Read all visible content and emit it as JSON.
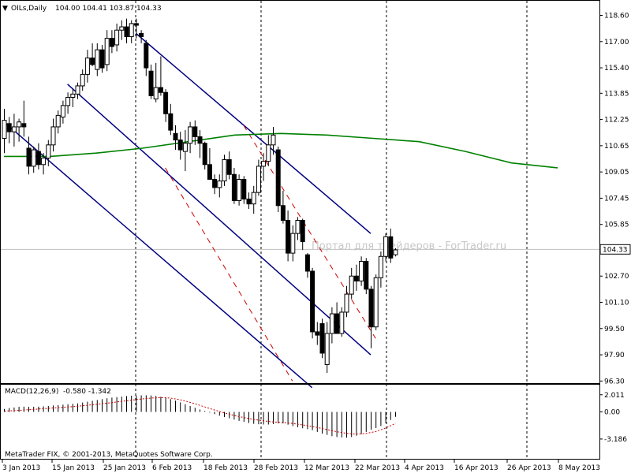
{
  "window": {
    "symbol_label": "OILs,Daily",
    "ohlc_label": "104.00 104.41 103.87 104.33",
    "menu_glyph": "▼",
    "watermark": "Портал для трейдеров - ForTrader.ru",
    "copyright": "MetaTrader FIX, © 2001-2013, MetaQuotes Software Corp."
  },
  "colors": {
    "background": "#ffffff",
    "frame": "#000000",
    "candle": "#000000",
    "channel": "#000080",
    "dashed_channel": "#cc0000",
    "moving_average": "#008000",
    "macd_histogram": "#000000",
    "macd_signal": "#cc0000",
    "grid": "#000000",
    "price_line": "#c0c0c0",
    "price_tag_bg": "#ffffff"
  },
  "chart_data": [
    {
      "type": "candlestick",
      "title": "OILs,Daily",
      "ylim": [
        96.3,
        118.6
      ],
      "y_ticks": [
        "118.60",
        "117.00",
        "115.40",
        "113.85",
        "112.25",
        "110.65",
        "109.05",
        "107.45",
        "105.85",
        "104.33",
        "102.70",
        "101.10",
        "99.50",
        "97.90",
        "96.30"
      ],
      "current_price": "104.33",
      "x_ticks": [
        "3 Jan 2013",
        "15 Jan 2013",
        "25 Jan 2013",
        "6 Feb 2013",
        "18 Feb 2013",
        "28 Feb 2013",
        "12 Mar 2013",
        "22 Mar 2013",
        "4 Apr 2013",
        "16 Apr 2013",
        "26 Apr 2013",
        "8 May 2013"
      ],
      "grid": "vertical dashed lines",
      "moving_average": {
        "values": [
          110.0,
          110.0,
          110.2,
          110.5,
          110.9,
          111.3,
          111.4,
          111.3,
          111.1,
          110.9,
          110.3,
          109.6,
          109.3
        ]
      },
      "channels": [
        {
          "style": "solid",
          "start": [
            0,
            112.1
          ],
          "end": [
            63,
            95.9
          ]
        },
        {
          "style": "solid",
          "start": [
            13,
            114.4
          ],
          "end": [
            75,
            97.9
          ]
        },
        {
          "style": "solid",
          "start": [
            27,
            117.5
          ],
          "end": [
            75,
            105.3
          ]
        },
        {
          "style": "dashed",
          "start": [
            33,
            109.3
          ],
          "end": [
            59,
            96.3
          ]
        },
        {
          "style": "dashed",
          "start": [
            49,
            111.9
          ],
          "end": [
            76,
            98.9
          ]
        }
      ],
      "candles": [
        {
          "o": 111.1,
          "h": 112.9,
          "l": 110.2,
          "c": 112.2
        },
        {
          "o": 112.0,
          "h": 112.4,
          "l": 110.8,
          "c": 111.5
        },
        {
          "o": 111.5,
          "h": 112.6,
          "l": 110.6,
          "c": 111.8
        },
        {
          "o": 111.8,
          "h": 112.3,
          "l": 110.9,
          "c": 112.1
        },
        {
          "o": 112.0,
          "h": 113.4,
          "l": 111.2,
          "c": 111.8
        },
        {
          "o": 110.5,
          "h": 111.2,
          "l": 108.9,
          "c": 109.4
        },
        {
          "o": 109.4,
          "h": 110.6,
          "l": 109.0,
          "c": 110.4
        },
        {
          "o": 110.3,
          "h": 110.8,
          "l": 109.2,
          "c": 109.5
        },
        {
          "o": 109.5,
          "h": 110.2,
          "l": 108.9,
          "c": 109.9
        },
        {
          "o": 109.9,
          "h": 111.0,
          "l": 109.4,
          "c": 110.7
        },
        {
          "o": 110.7,
          "h": 112.3,
          "l": 110.3,
          "c": 111.8
        },
        {
          "o": 111.8,
          "h": 112.8,
          "l": 111.4,
          "c": 112.5
        },
        {
          "o": 112.4,
          "h": 113.4,
          "l": 112.0,
          "c": 113.1
        },
        {
          "o": 113.1,
          "h": 113.9,
          "l": 112.6,
          "c": 113.6
        },
        {
          "o": 113.6,
          "h": 114.1,
          "l": 113.0,
          "c": 113.8
        },
        {
          "o": 113.8,
          "h": 114.5,
          "l": 113.5,
          "c": 114.3
        },
        {
          "o": 114.3,
          "h": 115.3,
          "l": 114.0,
          "c": 115.0
        },
        {
          "o": 115.0,
          "h": 116.5,
          "l": 114.5,
          "c": 116.0
        },
        {
          "o": 116.0,
          "h": 116.9,
          "l": 115.5,
          "c": 115.6
        },
        {
          "o": 115.3,
          "h": 116.9,
          "l": 114.9,
          "c": 116.5
        },
        {
          "o": 116.5,
          "h": 116.8,
          "l": 115.1,
          "c": 115.4
        },
        {
          "o": 115.6,
          "h": 117.7,
          "l": 115.2,
          "c": 117.2
        },
        {
          "o": 117.2,
          "h": 117.7,
          "l": 116.3,
          "c": 116.7
        },
        {
          "o": 116.8,
          "h": 118.1,
          "l": 116.4,
          "c": 117.7
        },
        {
          "o": 117.7,
          "h": 118.3,
          "l": 117.1,
          "c": 117.9
        },
        {
          "o": 117.9,
          "h": 118.4,
          "l": 116.9,
          "c": 117.3
        },
        {
          "o": 117.3,
          "h": 118.3,
          "l": 116.9,
          "c": 118.1
        },
        {
          "o": 118.1,
          "h": 118.4,
          "l": 117.2,
          "c": 118.0
        },
        {
          "o": 117.5,
          "h": 117.7,
          "l": 116.9,
          "c": 117.3
        },
        {
          "o": 116.9,
          "h": 117.1,
          "l": 114.9,
          "c": 115.4
        },
        {
          "o": 115.2,
          "h": 115.6,
          "l": 113.5,
          "c": 113.7
        },
        {
          "o": 113.5,
          "h": 115.7,
          "l": 113.3,
          "c": 114.2
        },
        {
          "o": 114.2,
          "h": 116.1,
          "l": 113.7,
          "c": 113.9
        },
        {
          "o": 113.9,
          "h": 114.1,
          "l": 112.1,
          "c": 112.6
        },
        {
          "o": 112.6,
          "h": 113.2,
          "l": 111.3,
          "c": 111.6
        },
        {
          "o": 111.4,
          "h": 111.9,
          "l": 110.4,
          "c": 111.0
        },
        {
          "o": 111.0,
          "h": 111.5,
          "l": 109.8,
          "c": 110.4
        },
        {
          "o": 110.3,
          "h": 111.6,
          "l": 109.1,
          "c": 110.8
        },
        {
          "o": 110.8,
          "h": 112.1,
          "l": 110.2,
          "c": 111.8
        },
        {
          "o": 111.8,
          "h": 112.2,
          "l": 110.7,
          "c": 111.2
        },
        {
          "o": 111.2,
          "h": 111.6,
          "l": 109.9,
          "c": 110.8
        },
        {
          "o": 110.8,
          "h": 110.9,
          "l": 109.2,
          "c": 109.5
        },
        {
          "o": 109.5,
          "h": 110.5,
          "l": 108.7,
          "c": 108.6
        },
        {
          "o": 108.6,
          "h": 108.9,
          "l": 107.7,
          "c": 108.1
        },
        {
          "o": 108.1,
          "h": 108.9,
          "l": 107.5,
          "c": 108.5
        },
        {
          "o": 108.5,
          "h": 110.1,
          "l": 108.2,
          "c": 109.8
        },
        {
          "o": 109.8,
          "h": 110.3,
          "l": 108.6,
          "c": 108.9
        },
        {
          "o": 108.9,
          "h": 109.3,
          "l": 107.1,
          "c": 107.3
        },
        {
          "o": 107.3,
          "h": 108.9,
          "l": 107.0,
          "c": 108.6
        },
        {
          "o": 108.6,
          "h": 108.8,
          "l": 107.1,
          "c": 107.4
        },
        {
          "o": 107.4,
          "h": 107.8,
          "l": 106.8,
          "c": 107.1
        },
        {
          "o": 107.1,
          "h": 108.2,
          "l": 106.5,
          "c": 107.8
        },
        {
          "o": 107.8,
          "h": 109.8,
          "l": 107.6,
          "c": 109.4
        },
        {
          "o": 109.4,
          "h": 110.2,
          "l": 108.5,
          "c": 109.7
        },
        {
          "o": 109.7,
          "h": 111.3,
          "l": 109.4,
          "c": 110.7
        },
        {
          "o": 110.7,
          "h": 111.8,
          "l": 110.1,
          "c": 111.3
        },
        {
          "o": 110.4,
          "h": 110.6,
          "l": 106.6,
          "c": 107.0
        },
        {
          "o": 107.0,
          "h": 107.9,
          "l": 105.9,
          "c": 106.1
        },
        {
          "o": 106.1,
          "h": 106.7,
          "l": 103.6,
          "c": 104.1
        },
        {
          "o": 104.1,
          "h": 105.8,
          "l": 103.6,
          "c": 105.3
        },
        {
          "o": 105.3,
          "h": 106.3,
          "l": 104.9,
          "c": 106.1
        },
        {
          "o": 106.1,
          "h": 106.2,
          "l": 104.3,
          "c": 104.8
        },
        {
          "o": 104.0,
          "h": 104.1,
          "l": 102.6,
          "c": 103.0
        },
        {
          "o": 103.0,
          "h": 103.2,
          "l": 98.9,
          "c": 99.3
        },
        {
          "o": 99.3,
          "h": 99.9,
          "l": 98.5,
          "c": 99.1
        },
        {
          "o": 99.8,
          "h": 100.1,
          "l": 97.7,
          "c": 98.0
        },
        {
          "o": 97.3,
          "h": 99.9,
          "l": 96.8,
          "c": 99.2
        },
        {
          "o": 99.2,
          "h": 100.8,
          "l": 98.6,
          "c": 100.4
        },
        {
          "o": 100.4,
          "h": 101.1,
          "l": 99.4,
          "c": 99.2
        },
        {
          "o": 99.2,
          "h": 100.8,
          "l": 99.0,
          "c": 100.5
        },
        {
          "o": 100.5,
          "h": 102.1,
          "l": 100.2,
          "c": 101.6
        },
        {
          "o": 101.6,
          "h": 103.2,
          "l": 101.3,
          "c": 102.7
        },
        {
          "o": 102.7,
          "h": 103.4,
          "l": 101.8,
          "c": 102.4
        },
        {
          "o": 102.4,
          "h": 103.9,
          "l": 102.1,
          "c": 103.6
        },
        {
          "o": 103.6,
          "h": 103.8,
          "l": 101.6,
          "c": 101.9
        },
        {
          "o": 101.9,
          "h": 102.1,
          "l": 98.3,
          "c": 99.6
        },
        {
          "o": 99.6,
          "h": 102.8,
          "l": 99.4,
          "c": 102.6
        },
        {
          "o": 102.6,
          "h": 104.2,
          "l": 102.0,
          "c": 103.9
        },
        {
          "o": 103.9,
          "h": 105.3,
          "l": 103.6,
          "c": 105.1
        },
        {
          "o": 105.1,
          "h": 105.6,
          "l": 103.5,
          "c": 103.8
        },
        {
          "o": 104.0,
          "h": 104.4,
          "l": 103.9,
          "c": 104.3
        }
      ]
    },
    {
      "type": "bar",
      "title": "MACD(12,26,9)",
      "values_label": "-0.580 -1.342",
      "ylim": [
        -3.186,
        2.011
      ],
      "y_ticks": [
        "2.011",
        "0.00",
        "-3.186"
      ],
      "series": [
        {
          "values": [
            0.35,
            0.45,
            0.52,
            0.6,
            0.62,
            0.6,
            0.6,
            0.62,
            0.65,
            0.7,
            0.75,
            0.8,
            0.85,
            0.9,
            0.95,
            1.0,
            1.1,
            1.2,
            1.3,
            1.4,
            1.5,
            1.6,
            1.68,
            1.74,
            1.8,
            1.86,
            1.9,
            1.92,
            1.94,
            1.95,
            1.93,
            1.88,
            1.78,
            1.66,
            1.5,
            1.32,
            1.12,
            0.9,
            0.7,
            0.48,
            0.28,
            0.1,
            -0.08,
            -0.26,
            -0.44,
            -0.6,
            -0.75,
            -0.9,
            -1.05,
            -1.18,
            -1.3,
            -1.4,
            -1.45,
            -1.48,
            -1.48,
            -1.42,
            -1.35,
            -1.35,
            -1.5,
            -1.66,
            -1.8,
            -1.92,
            -2.02,
            -2.15,
            -2.35,
            -2.55,
            -2.7,
            -2.85,
            -2.95,
            -3.0,
            -3.02,
            -2.95,
            -2.8,
            -2.6,
            -2.35,
            -2.1,
            -1.9,
            -1.65,
            -1.3,
            -0.95,
            -0.58
          ]
        },
        {
          "values": [
            0.1,
            0.12,
            0.15,
            0.18,
            0.22,
            0.26,
            0.3,
            0.34,
            0.38,
            0.42,
            0.46,
            0.5,
            0.54,
            0.58,
            0.62,
            0.67,
            0.72,
            0.78,
            0.84,
            0.9,
            0.96,
            1.03,
            1.1,
            1.17,
            1.24,
            1.31,
            1.38,
            1.45,
            1.51,
            1.57,
            1.62,
            1.66,
            1.68,
            1.67,
            1.62,
            1.53,
            1.42,
            1.28,
            1.12,
            0.95,
            0.77,
            0.58,
            0.4,
            0.22,
            0.05,
            -0.12,
            -0.28,
            -0.42,
            -0.55,
            -0.67,
            -0.78,
            -0.88,
            -0.97,
            -1.05,
            -1.12,
            -1.18,
            -1.22,
            -1.25,
            -1.3,
            -1.36,
            -1.44,
            -1.53,
            -1.62,
            -1.72,
            -1.83,
            -1.95,
            -2.08,
            -2.2,
            -2.32,
            -2.43,
            -2.52,
            -2.58,
            -2.6,
            -2.58,
            -2.52,
            -2.42,
            -2.3,
            -2.1,
            -1.88,
            -1.62,
            -1.34
          ]
        }
      ]
    }
  ]
}
